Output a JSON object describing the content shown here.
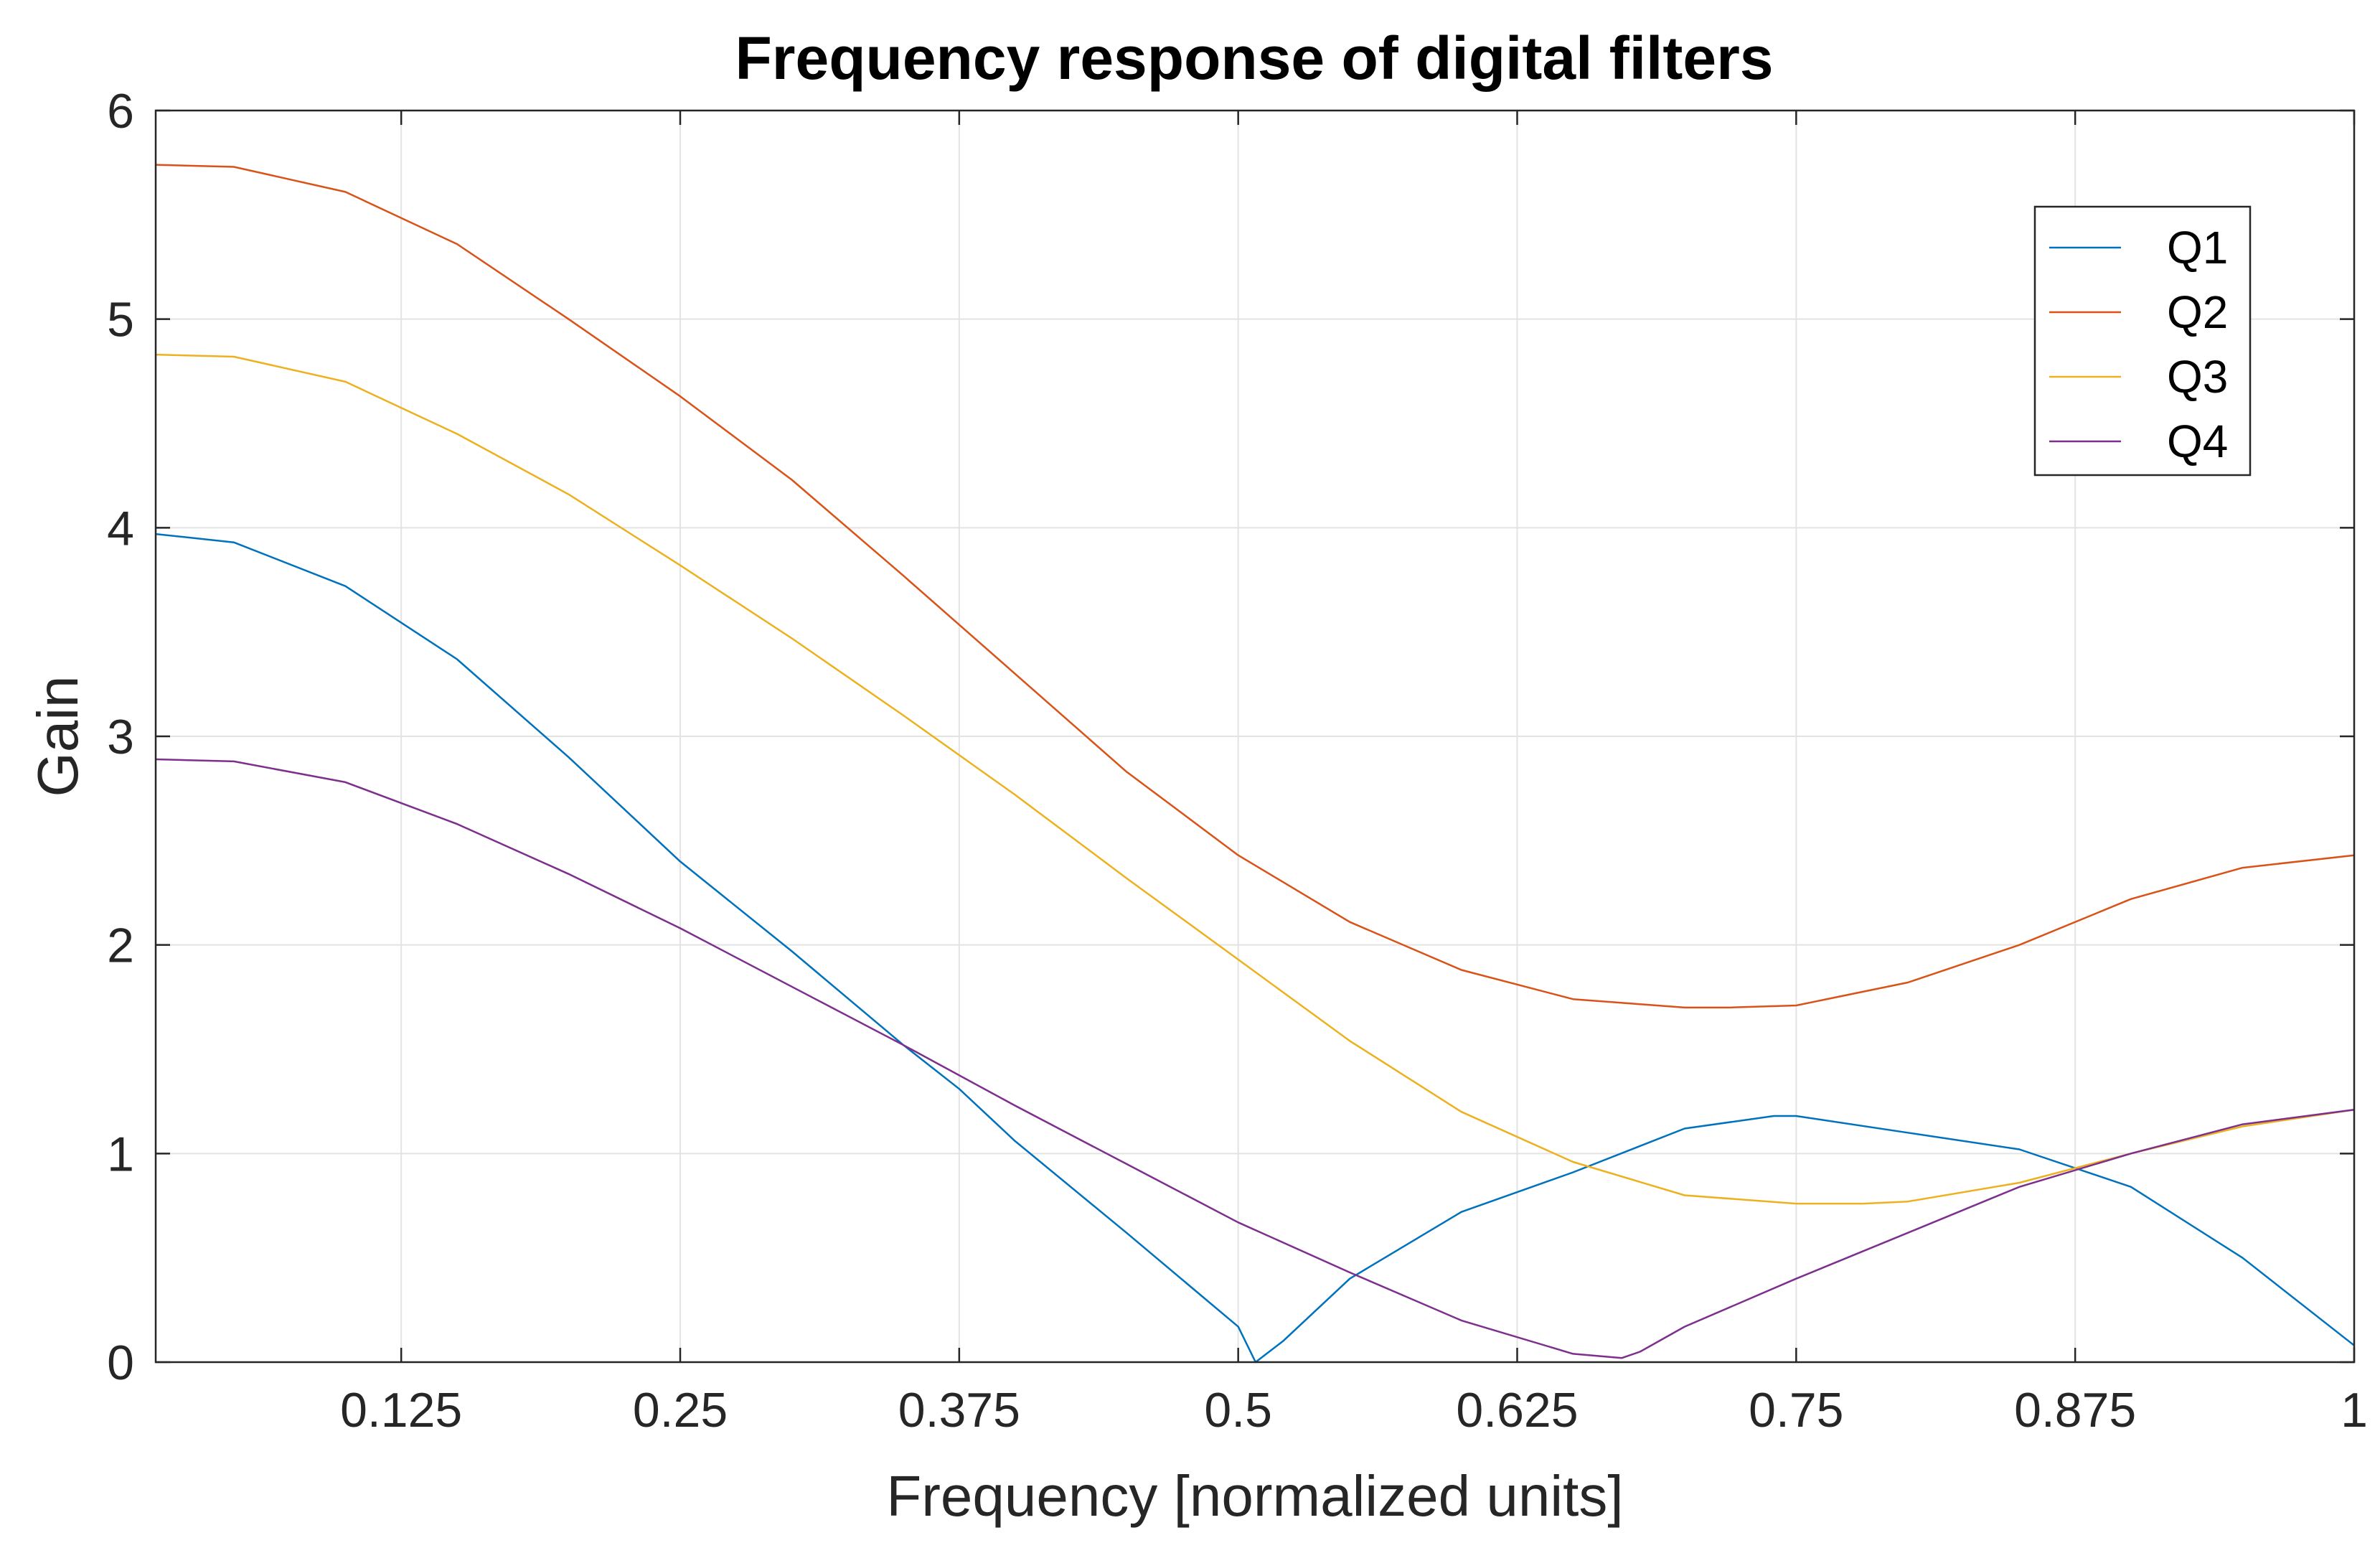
{
  "chart_data": {
    "type": "line",
    "title": "Frequency response of digital filters",
    "xlabel": "Frequency [normalized units]",
    "ylabel": "Gain",
    "xlim": [
      0.015,
      1.0
    ],
    "ylim": [
      0,
      6
    ],
    "xticks": [
      0.125,
      0.25,
      0.375,
      0.5,
      0.625,
      0.75,
      0.875,
      1
    ],
    "xtick_labels": [
      "0.125",
      "0.25",
      "0.375",
      "0.5",
      "0.625",
      "0.75",
      "0.875",
      "1"
    ],
    "yticks": [
      0,
      1,
      2,
      3,
      4,
      5,
      6
    ],
    "ytick_labels": [
      "0",
      "1",
      "2",
      "3",
      "4",
      "5",
      "6"
    ],
    "grid": true,
    "legend_position": "top-right",
    "series": [
      {
        "name": "Q1",
        "color": "#0072BD",
        "x": [
          0.015,
          0.05,
          0.1,
          0.15,
          0.2,
          0.25,
          0.3,
          0.35,
          0.375,
          0.4,
          0.45,
          0.5,
          0.5078,
          0.52,
          0.55,
          0.6,
          0.65,
          0.7,
          0.74,
          0.75,
          0.8,
          0.85,
          0.9,
          0.95,
          1.0
        ],
        "y": [
          3.97,
          3.93,
          3.72,
          3.37,
          2.9,
          2.4,
          1.97,
          1.52,
          1.31,
          1.06,
          0.62,
          0.17,
          0.0,
          0.1,
          0.4,
          0.72,
          0.91,
          1.12,
          1.18,
          1.18,
          1.1,
          1.02,
          0.84,
          0.5,
          0.08
        ]
      },
      {
        "name": "Q2",
        "color": "#D95319",
        "x": [
          0.015,
          0.05,
          0.1,
          0.15,
          0.2,
          0.25,
          0.3,
          0.35,
          0.4,
          0.45,
          0.5,
          0.55,
          0.6,
          0.65,
          0.7,
          0.72,
          0.75,
          0.8,
          0.85,
          0.9,
          0.95,
          1.0
        ],
        "y": [
          5.74,
          5.73,
          5.61,
          5.36,
          5.0,
          4.63,
          4.23,
          3.77,
          3.3,
          2.83,
          2.43,
          2.11,
          1.88,
          1.74,
          1.7,
          1.7,
          1.71,
          1.82,
          2.0,
          2.22,
          2.37,
          2.43
        ]
      },
      {
        "name": "Q3",
        "color": "#EDB120",
        "x": [
          0.015,
          0.05,
          0.1,
          0.15,
          0.2,
          0.25,
          0.3,
          0.35,
          0.4,
          0.45,
          0.5,
          0.55,
          0.6,
          0.65,
          0.7,
          0.75,
          0.78,
          0.8,
          0.85,
          0.9,
          0.95,
          1.0
        ],
        "y": [
          4.83,
          4.82,
          4.7,
          4.45,
          4.16,
          3.82,
          3.47,
          3.1,
          2.72,
          2.32,
          1.93,
          1.54,
          1.2,
          0.96,
          0.8,
          0.76,
          0.76,
          0.77,
          0.86,
          1.0,
          1.13,
          1.21
        ]
      },
      {
        "name": "Q4",
        "color": "#7E2F8E",
        "x": [
          0.015,
          0.05,
          0.1,
          0.15,
          0.2,
          0.25,
          0.3,
          0.35,
          0.4,
          0.45,
          0.5,
          0.55,
          0.6,
          0.65,
          0.6719,
          0.68,
          0.7,
          0.75,
          0.8,
          0.85,
          0.9,
          0.95,
          1.0
        ],
        "y": [
          2.89,
          2.88,
          2.78,
          2.58,
          2.34,
          2.08,
          1.8,
          1.52,
          1.23,
          0.95,
          0.67,
          0.43,
          0.2,
          0.04,
          0.02,
          0.05,
          0.17,
          0.4,
          0.62,
          0.84,
          1.0,
          1.14,
          1.21
        ]
      }
    ]
  }
}
